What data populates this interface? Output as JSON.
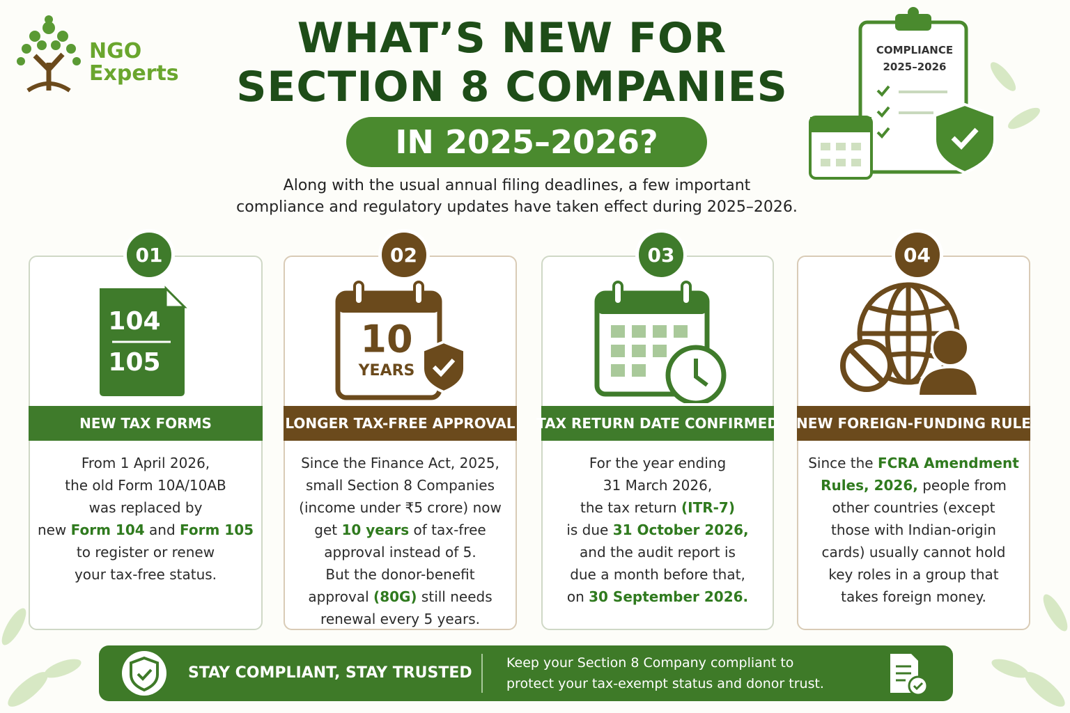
{
  "header": {
    "logo": {
      "line1": "NGO",
      "line2": "Experts"
    },
    "title_lines": [
      "WHAT’S NEW FOR",
      "SECTION 8 COMPANIES"
    ],
    "title_pill": "IN 2025–2026?",
    "subtitle_lines": [
      "Along with the usual annual filing deadlines, a few important",
      "compliance and regulatory updates have taken effect during 2025–2026."
    ],
    "illustration": {
      "line1": "COMPLIANCE",
      "line2": "2025–2026"
    }
  },
  "cards": [
    {
      "number": "01",
      "icon_text": [
        "104",
        "105"
      ],
      "title": "NEW TAX FORMS",
      "body": [
        [
          "From 1 April 2026,"
        ],
        [
          "the old Form 10A/10AB"
        ],
        [
          "was replaced by"
        ],
        [
          "new ",
          {
            "strong": "Form 104"
          },
          " and ",
          {
            "strong": "Form 105"
          }
        ],
        [
          "to register or renew"
        ],
        [
          "your tax-free status."
        ]
      ]
    },
    {
      "number": "02",
      "icon_text": [
        "10",
        "YEARS"
      ],
      "title": "LONGER TAX-FREE APPROVAL",
      "body": [
        [
          "Since the Finance Act, 2025,"
        ],
        [
          "small Section 8 Companies"
        ],
        [
          "(income under ₹5 crore) now"
        ],
        [
          "get ",
          {
            "strong": "10 years"
          },
          " of tax-free"
        ],
        [
          "approval instead of 5."
        ],
        [
          "But the donor-benefit"
        ],
        [
          "approval ",
          {
            "strong": "(80G)"
          },
          " still needs"
        ],
        [
          "renewal every 5 years."
        ]
      ]
    },
    {
      "number": "03",
      "icon_text": [],
      "title": "TAX RETURN DATE CONFIRMED",
      "body": [
        [
          "For the year ending"
        ],
        [
          "31 March 2026,"
        ],
        [
          "the tax return ",
          {
            "strong": "(ITR-7)"
          }
        ],
        [
          "is due ",
          {
            "strong": "31 October 2026,"
          }
        ],
        [
          "and the audit report is"
        ],
        [
          "due a month before that,"
        ],
        [
          "on ",
          {
            "strong": "30 September 2026."
          }
        ]
      ]
    },
    {
      "number": "04",
      "icon_text": [],
      "title": "NEW FOREIGN-FUNDING RULE",
      "body": [
        [
          "Since the ",
          {
            "strong": "FCRA Amendment"
          }
        ],
        [
          {
            "strong": "Rules, 2026,"
          },
          " people from"
        ],
        [
          "other countries (except"
        ],
        [
          "those with Indian-origin"
        ],
        [
          "cards) usually cannot hold"
        ],
        [
          "key roles in a group that"
        ],
        [
          "takes foreign money."
        ]
      ]
    }
  ],
  "footer": {
    "slogan": "STAY COMPLIANT, STAY TRUSTED",
    "text_lines": [
      "Keep your Section 8 Company compliant to",
      "protect your tax-exempt status and donor trust."
    ]
  }
}
